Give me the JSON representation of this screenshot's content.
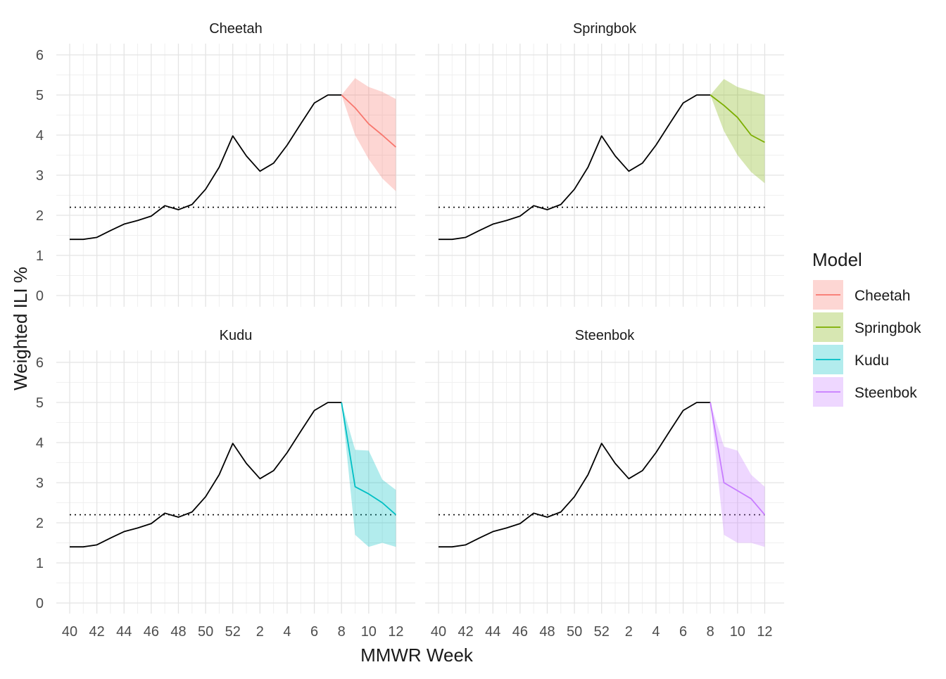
{
  "chart_data": {
    "type": "line",
    "layout": "faceted 2x2",
    "xlabel": "MMWR Week",
    "ylabel": "Weighted ILI %",
    "ylim": [
      0,
      6
    ],
    "yticks": [
      0,
      1,
      2,
      3,
      4,
      5,
      6
    ],
    "weeks": [
      40,
      41,
      42,
      43,
      44,
      45,
      46,
      47,
      48,
      49,
      50,
      51,
      52,
      1,
      2,
      3,
      4,
      5,
      6,
      7,
      8,
      9,
      10,
      11,
      12
    ],
    "xtick_labels": [
      "40",
      "42",
      "44",
      "46",
      "48",
      "50",
      "52",
      "2",
      "4",
      "6",
      "8",
      "10",
      "12"
    ],
    "grid": true,
    "baseline": 2.2,
    "observed": [
      1.4,
      1.4,
      1.45,
      1.62,
      1.78,
      1.87,
      1.98,
      2.24,
      2.14,
      2.27,
      2.65,
      3.2,
      3.98,
      3.48,
      3.1,
      3.3,
      3.75,
      4.28,
      4.8,
      5.0,
      5.0
    ],
    "legend": {
      "title": "Model",
      "position": "right"
    },
    "series": [
      {
        "name": "Cheetah",
        "color": "#F8766D",
        "forecast": [
          5.0,
          4.68,
          4.28,
          4.0,
          3.7
        ],
        "lower": [
          5.0,
          4.0,
          3.4,
          2.92,
          2.6
        ],
        "upper": [
          5.0,
          5.42,
          5.2,
          5.08,
          4.9
        ]
      },
      {
        "name": "Springbok",
        "color": "#7CAE00",
        "forecast": [
          5.0,
          4.74,
          4.44,
          4.0,
          3.82
        ],
        "lower": [
          5.0,
          4.1,
          3.5,
          3.08,
          2.8
        ],
        "upper": [
          5.0,
          5.4,
          5.2,
          5.1,
          5.0
        ]
      },
      {
        "name": "Kudu",
        "color": "#00BFC4",
        "forecast": [
          5.0,
          2.9,
          2.72,
          2.5,
          2.2
        ],
        "lower": [
          5.0,
          1.7,
          1.4,
          1.5,
          1.4
        ],
        "upper": [
          5.0,
          3.82,
          3.8,
          3.08,
          2.82
        ]
      },
      {
        "name": "Steenbok",
        "color": "#C77CFF",
        "forecast": [
          5.0,
          3.0,
          2.8,
          2.6,
          2.2
        ],
        "lower": [
          5.0,
          1.7,
          1.5,
          1.5,
          1.4
        ],
        "upper": [
          5.0,
          3.9,
          3.8,
          3.2,
          2.9
        ]
      }
    ]
  }
}
